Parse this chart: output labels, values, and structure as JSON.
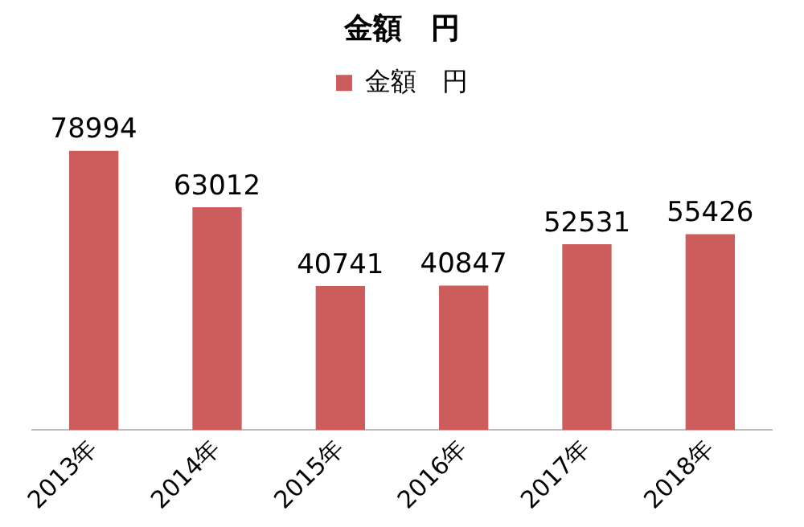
{
  "chart_data": {
    "type": "bar",
    "title": "金額　円",
    "categories": [
      "2013年",
      "2014年",
      "2015年",
      "2016年",
      "2017年",
      "2018年"
    ],
    "series": [
      {
        "name": "金額　円",
        "color": "#cd5c5c",
        "values": [
          78994,
          63012,
          40741,
          40847,
          52531,
          55426
        ]
      }
    ],
    "data_labels": true,
    "legend": "top",
    "grid": false,
    "tick_labels": "x"
  }
}
